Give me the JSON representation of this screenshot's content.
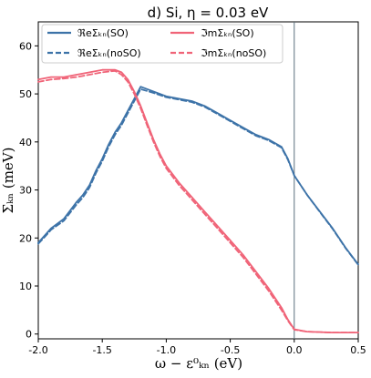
{
  "chart_data": {
    "type": "line",
    "title": "d) Si, η = 0.03 eV",
    "xlabel": "ω − ε⁰ₖₙ (eV)",
    "ylabel": "Σₖₙ (meV)",
    "xlim": [
      -2.0,
      0.5
    ],
    "ylim": [
      -1,
      65
    ],
    "xticks": [
      -2.0,
      -1.5,
      -1.0,
      -0.5,
      0.0,
      0.5
    ],
    "xtick_labels": [
      "-2.0",
      "-1.5",
      "-1.0",
      "-0.5",
      "0.0",
      "0.5"
    ],
    "yticks": [
      0,
      10,
      20,
      30,
      40,
      50,
      60
    ],
    "ytick_labels": [
      "0",
      "10",
      "20",
      "30",
      "40",
      "50",
      "60"
    ],
    "vline_x": 0.0,
    "grid": false,
    "legend_position": "top",
    "series": [
      {
        "name": "ℜeΣₖₙ(SO)",
        "color": "#3d73a8",
        "dash": "solid",
        "x": [
          -2.0,
          -1.95,
          -1.9,
          -1.8,
          -1.7,
          -1.65,
          -1.6,
          -1.55,
          -1.5,
          -1.45,
          -1.4,
          -1.35,
          -1.3,
          -1.25,
          -1.2,
          -1.15,
          -1.1,
          -1.0,
          -0.9,
          -0.8,
          -0.7,
          -0.6,
          -0.5,
          -0.4,
          -0.3,
          -0.2,
          -0.1,
          -0.05,
          0.0,
          0.1,
          0.2,
          0.3,
          0.4,
          0.5
        ],
        "y": [
          19.0,
          20.5,
          22.0,
          24.0,
          27.5,
          29.0,
          31.0,
          34.0,
          36.5,
          39.5,
          42.0,
          44.0,
          46.5,
          49.0,
          51.5,
          51.0,
          50.5,
          49.5,
          49.0,
          48.5,
          47.5,
          46.0,
          44.5,
          43.0,
          41.5,
          40.5,
          39.0,
          36.5,
          33.0,
          29.0,
          25.5,
          22.0,
          18.0,
          14.5
        ]
      },
      {
        "name": "ℜeΣₖₙ(noSO)",
        "color": "#3d73a8",
        "dash": "dashed",
        "x": [
          -2.0,
          -1.95,
          -1.9,
          -1.8,
          -1.7,
          -1.65,
          -1.6,
          -1.55,
          -1.5,
          -1.45,
          -1.4,
          -1.35,
          -1.3,
          -1.25,
          -1.2,
          -1.15,
          -1.1,
          -1.0,
          -0.9,
          -0.8,
          -0.7,
          -0.6,
          -0.5,
          -0.4,
          -0.3,
          -0.2,
          -0.1,
          -0.05,
          0.0,
          0.1,
          0.2,
          0.3,
          0.4,
          0.5
        ],
        "y": [
          18.8,
          20.2,
          21.7,
          23.6,
          27.0,
          28.5,
          30.5,
          33.5,
          36.0,
          39.0,
          41.5,
          43.5,
          46.0,
          48.5,
          51.0,
          50.6,
          50.2,
          49.3,
          48.8,
          48.3,
          47.3,
          45.8,
          44.3,
          42.8,
          41.3,
          40.3,
          38.8,
          36.3,
          33.0,
          29.0,
          25.4,
          21.9,
          17.9,
          14.4
        ]
      },
      {
        "name": "ℑmΣₖₙ(SO)",
        "color": "#f06478",
        "dash": "solid",
        "x": [
          -2.0,
          -1.9,
          -1.8,
          -1.7,
          -1.6,
          -1.5,
          -1.4,
          -1.35,
          -1.3,
          -1.25,
          -1.2,
          -1.15,
          -1.1,
          -1.05,
          -1.0,
          -0.9,
          -0.8,
          -0.7,
          -0.6,
          -0.5,
          -0.4,
          -0.3,
          -0.2,
          -0.1,
          -0.05,
          0.0,
          0.1,
          0.2,
          0.3,
          0.4,
          0.5
        ],
        "y": [
          53.0,
          53.5,
          53.5,
          54.0,
          54.5,
          55.0,
          55.0,
          54.5,
          53.0,
          50.5,
          47.5,
          44.0,
          40.5,
          37.5,
          35.0,
          31.5,
          28.5,
          25.5,
          22.5,
          19.5,
          16.5,
          13.0,
          9.5,
          5.5,
          3.0,
          1.0,
          0.5,
          0.4,
          0.3,
          0.3,
          0.3
        ]
      },
      {
        "name": "ℑmΣₖₙ(noSO)",
        "color": "#f06478",
        "dash": "dashed",
        "x": [
          -2.0,
          -1.9,
          -1.8,
          -1.7,
          -1.6,
          -1.5,
          -1.4,
          -1.35,
          -1.3,
          -1.25,
          -1.2,
          -1.15,
          -1.1,
          -1.05,
          -1.0,
          -0.9,
          -0.8,
          -0.7,
          -0.6,
          -0.5,
          -0.4,
          -0.3,
          -0.2,
          -0.1,
          -0.05,
          0.0,
          0.1,
          0.2,
          0.3,
          0.4,
          0.5
        ],
        "y": [
          52.5,
          53.0,
          53.2,
          53.5,
          54.0,
          54.5,
          54.8,
          54.0,
          52.5,
          50.0,
          47.0,
          43.5,
          40.0,
          37.0,
          34.5,
          31.0,
          28.0,
          25.0,
          22.0,
          19.0,
          16.0,
          12.5,
          9.0,
          5.0,
          2.8,
          0.9,
          0.5,
          0.4,
          0.3,
          0.3,
          0.3
        ]
      }
    ]
  }
}
